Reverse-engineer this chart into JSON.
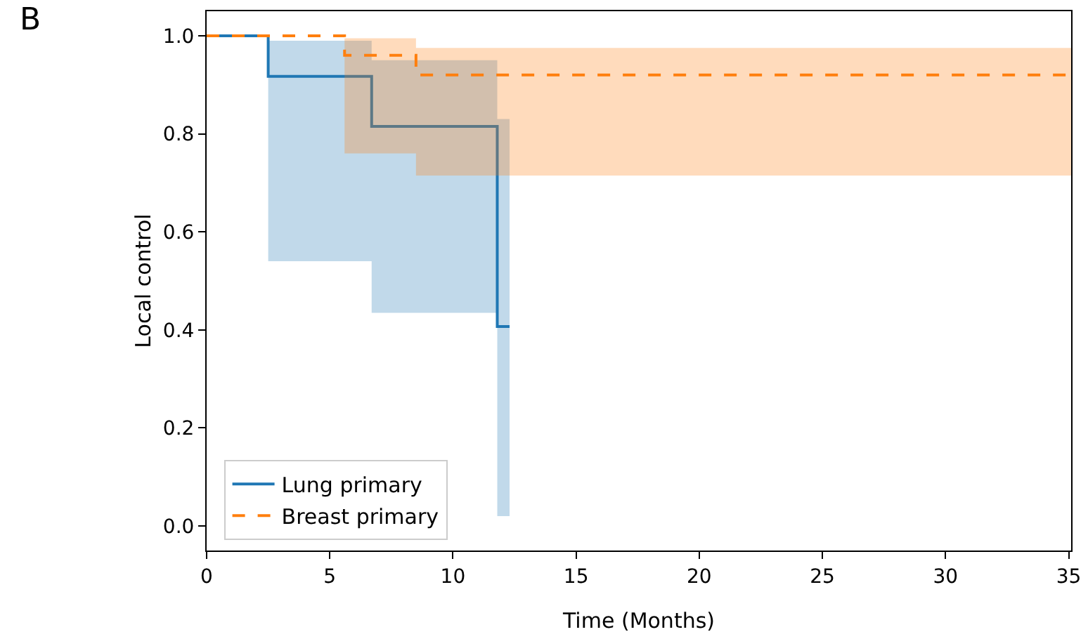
{
  "chart_data": {
    "type": "step",
    "xlabel": "Time (Months)",
    "ylabel": "Local control",
    "annotations": [
      "B"
    ],
    "xlim": [
      0,
      35.1
    ],
    "xticks": [
      0,
      5,
      10,
      15,
      20,
      25,
      30,
      35
    ],
    "ylim": [
      -0.05,
      1.05
    ],
    "yticks": [
      {
        "value": 0,
        "label": "0.0"
      },
      {
        "value": 0.2,
        "label": "0.2"
      },
      {
        "value": 0.4,
        "label": "0.4"
      },
      {
        "value": 0.6,
        "label": "0.6"
      },
      {
        "value": 0.8,
        "label": "0.8"
      },
      {
        "value": 1,
        "label": "1.0"
      }
    ],
    "grid": false,
    "legend": "bottom left",
    "series": [
      {
        "name": "Lung primary",
        "color": "#1f77b4",
        "line_style": "solid",
        "x": [
          0,
          2.5,
          6.7,
          11.8,
          12.3
        ],
        "values": [
          1,
          0.917,
          0.815,
          0.407,
          0.407
        ],
        "lower": [
          1,
          0.54,
          0.435,
          0.02,
          0.02
        ],
        "upper": [
          1,
          0.99,
          0.95,
          0.83,
          0.83
        ]
      },
      {
        "name": "Breast primary",
        "color": "#ff7f0e",
        "line_style": "dashed",
        "x": [
          0,
          5.6,
          8.5,
          35.1
        ],
        "values": [
          1,
          0.96,
          0.92,
          0.92
        ],
        "lower": [
          1,
          0.76,
          0.715,
          0.715
        ],
        "upper": [
          1,
          0.995,
          0.975,
          0.975
        ]
      }
    ]
  }
}
